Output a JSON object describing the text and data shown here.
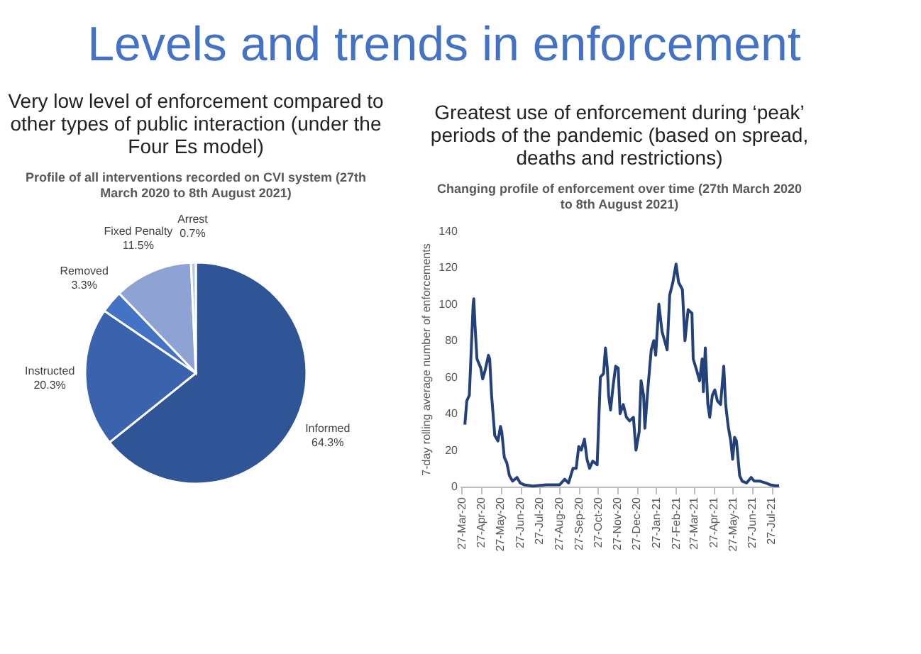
{
  "chart_data": [
    {
      "type": "pie",
      "title": "Very low level of enforcement compared to other types of public interaction (under the Four Es model)",
      "subtitle": "Profile of all interventions recorded on CVI system (27th March 2020 to 8th August 2021)",
      "annotations": [
        "Levels and trends in enforcement"
      ],
      "categories": [
        "Informed",
        "Instructed",
        "Removed",
        "Fixed Penalty",
        "Arrest"
      ],
      "values": [
        64.3,
        20.3,
        3.3,
        11.5,
        0.7
      ],
      "value_labels": [
        "64.3%",
        "20.3%",
        "3.3%",
        "11.5%",
        "0.7%"
      ],
      "colors": [
        "#2f5597",
        "#3a62ad",
        "#4472c4",
        "#8ea2d4",
        "#b4c7e7"
      ]
    },
    {
      "type": "line",
      "title": "Greatest use of enforcement during ‘peak’ periods of the pandemic (based on spread, deaths and restrictions)",
      "subtitle": "Changing profile of enforcement over time (27th March 2020 to 8th August 2021)",
      "ylabel": "7-day rolling average number of enforcements",
      "xlim": [
        "2020-03-24",
        "2021-08-08"
      ],
      "ylim": [
        0,
        140
      ],
      "yticks": [
        0,
        20,
        40,
        60,
        80,
        100,
        120,
        140
      ],
      "xticks": [
        {
          "value": "2020-03-27",
          "label": "27-Mar-20"
        },
        {
          "value": "2020-04-27",
          "label": "27-Apr-20"
        },
        {
          "value": "2020-05-27",
          "label": "27-May-20"
        },
        {
          "value": "2020-06-27",
          "label": "27-Jun-20"
        },
        {
          "value": "2020-07-27",
          "label": "27-Jul-20"
        },
        {
          "value": "2020-08-27",
          "label": "27-Aug-20"
        },
        {
          "value": "2020-09-27",
          "label": "27-Sep-20"
        },
        {
          "value": "2020-10-27",
          "label": "27-Oct-20"
        },
        {
          "value": "2020-11-27",
          "label": "27-Nov-20"
        },
        {
          "value": "2020-12-27",
          "label": "27-Dec-20"
        },
        {
          "value": "2021-01-27",
          "label": "27-Jan-21"
        },
        {
          "value": "2021-02-27",
          "label": "27-Feb-21"
        },
        {
          "value": "2021-03-27",
          "label": "27-Mar-21"
        },
        {
          "value": "2021-04-27",
          "label": "27-Apr-21"
        },
        {
          "value": "2021-05-27",
          "label": "27-May-21"
        },
        {
          "value": "2021-06-27",
          "label": "27-Jun-21"
        },
        {
          "value": "2021-07-27",
          "label": "27-Jul-21"
        }
      ],
      "grid": false,
      "marker": "none",
      "line_style": "solid",
      "x": [
        "2020-04-01",
        "2020-04-04",
        "2020-04-08",
        "2020-04-11",
        "2020-04-14",
        "2020-04-15",
        "2020-04-17",
        "2020-04-20",
        "2020-04-26",
        "2020-04-29",
        "2020-05-03",
        "2020-05-08",
        "2020-05-10",
        "2020-05-13",
        "2020-05-18",
        "2020-05-23",
        "2020-05-27",
        "2020-05-29",
        "2020-06-02",
        "2020-06-06",
        "2020-06-10",
        "2020-06-15",
        "2020-06-22",
        "2020-06-27",
        "2020-07-03",
        "2020-07-17",
        "2020-08-07",
        "2020-08-28",
        "2020-09-05",
        "2020-09-11",
        "2020-09-18",
        "2020-09-23",
        "2020-09-27",
        "2020-10-01",
        "2020-10-06",
        "2020-10-10",
        "2020-10-14",
        "2020-10-19",
        "2020-10-26",
        "2020-10-31",
        "2020-11-05",
        "2020-11-08",
        "2020-11-11",
        "2020-11-13",
        "2020-11-16",
        "2020-11-20",
        "2020-11-24",
        "2020-11-28",
        "2020-12-01",
        "2020-12-06",
        "2020-12-11",
        "2020-12-16",
        "2020-12-22",
        "2020-12-26",
        "2020-12-31",
        "2021-01-03",
        "2021-01-07",
        "2021-01-09",
        "2021-01-14",
        "2021-01-19",
        "2021-01-23",
        "2021-01-26",
        "2021-01-31",
        "2021-02-05",
        "2021-02-09",
        "2021-02-13",
        "2021-02-17",
        "2021-02-22",
        "2021-02-27",
        "2021-03-03",
        "2021-03-09",
        "2021-03-13",
        "2021-03-18",
        "2021-03-24",
        "2021-03-26",
        "2021-04-01",
        "2021-04-05",
        "2021-04-09",
        "2021-04-11",
        "2021-04-14",
        "2021-04-18",
        "2021-04-21",
        "2021-04-25",
        "2021-04-29",
        "2021-05-03",
        "2021-05-08",
        "2021-05-13",
        "2021-05-16",
        "2021-05-20",
        "2021-05-24",
        "2021-05-27",
        "2021-05-30",
        "2021-06-02",
        "2021-06-07",
        "2021-06-11",
        "2021-06-18",
        "2021-06-25",
        "2021-06-30",
        "2021-07-09",
        "2021-07-18",
        "2021-07-25",
        "2021-08-02",
        "2021-08-08"
      ],
      "series": [
        {
          "color": "#24417a",
          "values": [
            34,
            47,
            50,
            75,
            100,
            103,
            88,
            70,
            65,
            59,
            64,
            72,
            70,
            50,
            28,
            25,
            33,
            30,
            16,
            13,
            6,
            3,
            5,
            2,
            1,
            0.3,
            1,
            1,
            4,
            2,
            10,
            10,
            22,
            20,
            26,
            15,
            10,
            14,
            12,
            60,
            62,
            76,
            65,
            50,
            42,
            55,
            66,
            65,
            40,
            45,
            38,
            36,
            38,
            20,
            30,
            58,
            50,
            32,
            55,
            75,
            80,
            72,
            100,
            85,
            80,
            75,
            105,
            112,
            122,
            112,
            108,
            80,
            97,
            95,
            70,
            63,
            58,
            70,
            52,
            76,
            45,
            38,
            50,
            53,
            47,
            45,
            66,
            45,
            33,
            25,
            15,
            27,
            25,
            6,
            3,
            2,
            5,
            3,
            3,
            2,
            1,
            0.5,
            0.5
          ]
        }
      ]
    }
  ]
}
